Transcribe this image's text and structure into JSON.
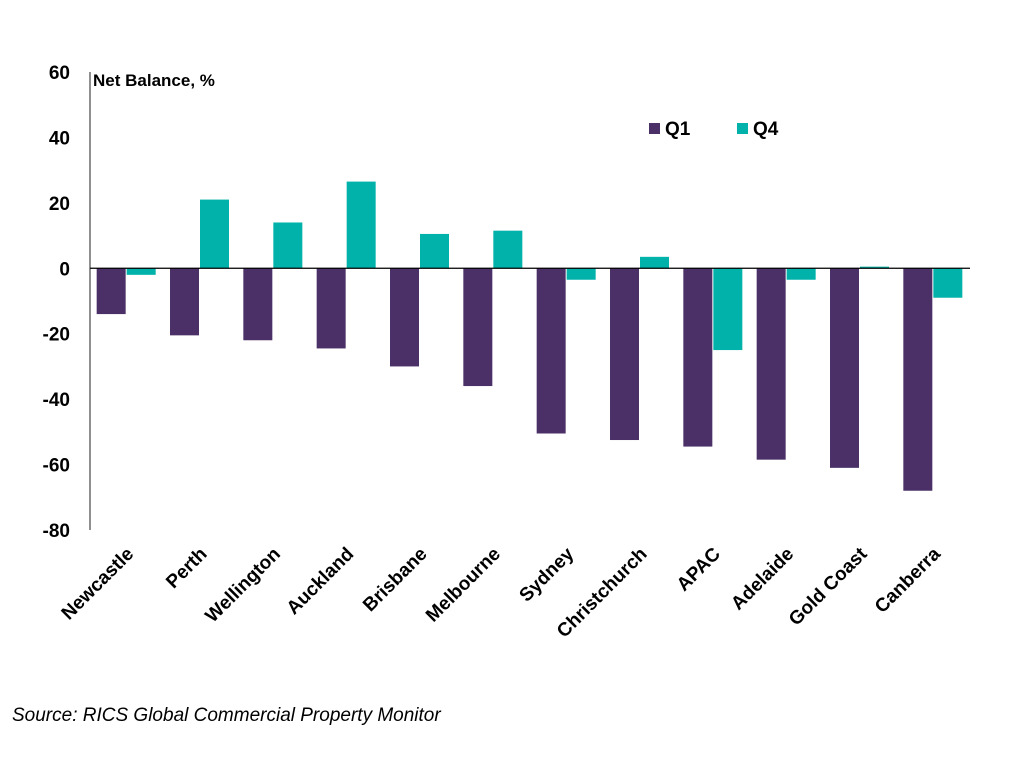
{
  "chart_data": {
    "type": "bar",
    "ylabel": "Net Balance, %",
    "ylim": [
      -80,
      60
    ],
    "yticks": [
      60,
      40,
      20,
      0,
      -20,
      -40,
      -60,
      -80
    ],
    "grid": false,
    "legend_position": "top-right",
    "categories": [
      "Newcastle",
      "Perth",
      "Wellington",
      "Auckland",
      "Brisbane",
      "Melbourne",
      "Sydney",
      "Christchurch",
      "APAC",
      "Adelaide",
      "Gold Coast",
      "Canberra"
    ],
    "series": [
      {
        "name": "Q1",
        "color": "#4B3068",
        "values": [
          -14,
          -20.5,
          -22,
          -24.5,
          -30,
          -36,
          -50.5,
          -52.5,
          -54.5,
          -58.5,
          -61,
          -68
        ]
      },
      {
        "name": "Q4",
        "color": "#00B2A9",
        "values": [
          -2,
          21,
          14,
          26.5,
          10.5,
          11.5,
          -3.5,
          3.5,
          -25,
          -3.5,
          0.5,
          -9
        ]
      }
    ]
  },
  "source": "Source: RICS Global Commercial Property Monitor"
}
